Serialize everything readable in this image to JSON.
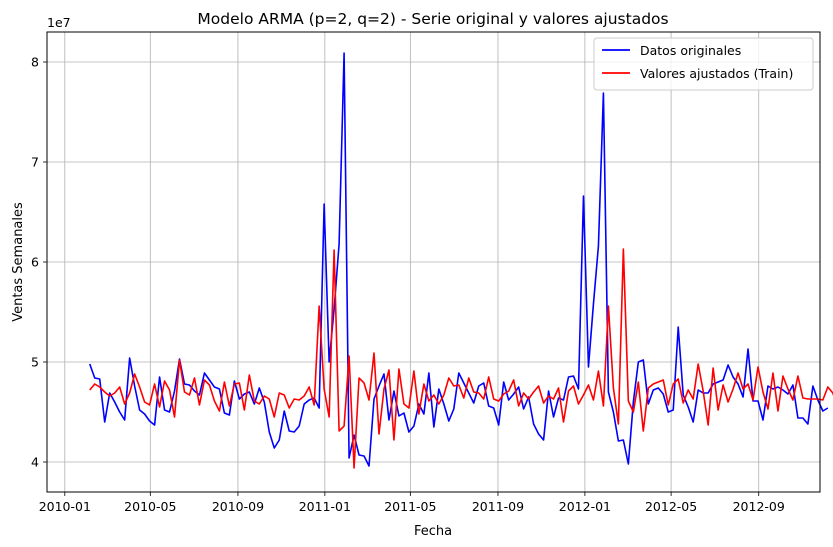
{
  "chart_data": {
    "type": "line",
    "title": "Modelo ARMA (p=2, q=2) - Serie original y valores ajustados",
    "xlabel": "Fecha",
    "ylabel": "Ventas Semanales",
    "y_offset_label": "1e7",
    "xlim": [
      "2009-12-07",
      "2012-11-26"
    ],
    "ylim": [
      37000000,
      83000000
    ],
    "grid": true,
    "legend_position": "upper right",
    "x_ticks": [
      {
        "date": "2010-01-01",
        "label": "2010-01"
      },
      {
        "date": "2010-05-01",
        "label": "2010-05"
      },
      {
        "date": "2010-09-01",
        "label": "2010-09"
      },
      {
        "date": "2011-01-01",
        "label": "2011-01"
      },
      {
        "date": "2011-05-01",
        "label": "2011-05"
      },
      {
        "date": "2011-09-01",
        "label": "2011-09"
      },
      {
        "date": "2012-01-01",
        "label": "2012-01"
      },
      {
        "date": "2012-05-01",
        "label": "2012-05"
      },
      {
        "date": "2012-09-01",
        "label": "2012-09"
      }
    ],
    "y_ticks": [
      {
        "value": 40000000,
        "label": "4"
      },
      {
        "value": 50000000,
        "label": "5"
      },
      {
        "value": 60000000,
        "label": "6"
      },
      {
        "value": 70000000,
        "label": "7"
      },
      {
        "value": 80000000,
        "label": "8"
      }
    ],
    "x_start": "2010-02-05",
    "x_step_days": 7,
    "series": [
      {
        "name": "Datos originales",
        "color": "#0000ff",
        "values": [
          49.8,
          48.4,
          48.3,
          44.0,
          46.9,
          46.0,
          45.0,
          44.2,
          50.4,
          47.6,
          45.2,
          44.8,
          44.1,
          43.7,
          48.5,
          45.2,
          45.0,
          47.1,
          50.3,
          47.8,
          47.7,
          47.1,
          46.7,
          48.9,
          48.2,
          47.5,
          47.3,
          44.9,
          44.7,
          48.1,
          46.3,
          46.8,
          47.0,
          45.8,
          47.4,
          46.0,
          43.0,
          41.4,
          42.2,
          45.1,
          43.1,
          43.0,
          43.6,
          45.8,
          46.2,
          46.4,
          45.4,
          65.8,
          50.0,
          55.3,
          61.8,
          80.9,
          40.4,
          42.7,
          40.7,
          40.6,
          39.6,
          46.3,
          47.6,
          48.8,
          44.2,
          47.1,
          44.6,
          44.9,
          43.0,
          43.6,
          45.8,
          44.8,
          48.9,
          43.5,
          47.3,
          45.8,
          44.1,
          45.3,
          48.9,
          47.9,
          46.9,
          45.9,
          47.6,
          47.9,
          45.6,
          45.4,
          43.7,
          48.0,
          46.2,
          46.8,
          47.5,
          45.3,
          46.5,
          43.8,
          42.8,
          42.2,
          47.1,
          44.5,
          46.4,
          46.2,
          48.5,
          48.6,
          47.3,
          66.6,
          49.5,
          55.8,
          61.6,
          76.9,
          47.0,
          45.0,
          42.1,
          42.2,
          39.8,
          46.0,
          50.0,
          50.2,
          45.8,
          47.2,
          47.4,
          46.8,
          45.0,
          45.2,
          53.5,
          46.7,
          45.5,
          44.0,
          47.2,
          46.9,
          46.9,
          47.8,
          48.0,
          48.2,
          49.7,
          48.5,
          47.8,
          46.5,
          51.3,
          46.1,
          46.1,
          44.2,
          47.6,
          47.3,
          47.5,
          47.2,
          46.8,
          47.7,
          44.4,
          44.4,
          43.8,
          47.6,
          46.2,
          45.1,
          45.4
        ]
      },
      {
        "name": "Valores ajustados (Train)",
        "color": "#ff0000",
        "values": [
          47.2,
          47.8,
          47.5,
          47.0,
          46.6,
          46.9,
          47.5,
          45.8,
          46.9,
          48.8,
          47.5,
          46.0,
          45.7,
          47.8,
          45.5,
          48.1,
          47.2,
          44.5,
          50.2,
          47.0,
          46.7,
          48.4,
          45.7,
          48.2,
          47.7,
          46.1,
          45.1,
          48.0,
          45.6,
          47.8,
          47.9,
          45.2,
          48.7,
          46.1,
          45.8,
          46.6,
          46.3,
          44.5,
          46.9,
          46.7,
          45.4,
          46.3,
          46.2,
          46.6,
          47.5,
          45.7,
          55.6,
          47.3,
          44.5,
          61.2,
          43.1,
          43.6,
          50.6,
          39.4,
          48.4,
          47.9,
          46.2,
          50.9,
          42.8,
          47.3,
          49.2,
          42.2,
          49.3,
          45.8,
          45.4,
          49.1,
          44.8,
          47.8,
          46.1,
          46.7,
          45.8,
          46.7,
          48.4,
          47.6,
          47.7,
          46.4,
          48.4,
          47.0,
          46.9,
          46.3,
          48.5,
          46.3,
          46.1,
          46.8,
          47.1,
          48.2,
          45.6,
          46.9,
          46.3,
          47.0,
          47.6,
          45.9,
          46.6,
          46.3,
          47.4,
          44.0,
          47.1,
          47.6,
          45.8,
          46.7,
          47.7,
          46.2,
          49.1,
          45.6,
          55.6,
          47.4,
          43.8,
          61.3,
          46.1,
          45.0,
          48.0,
          43.1,
          47.4,
          47.8,
          48.0,
          48.2,
          45.7,
          47.8,
          48.3,
          45.9,
          47.2,
          46.3,
          49.8,
          47.1,
          43.7,
          49.4,
          45.2,
          47.7,
          46.0,
          47.3,
          48.9,
          47.3,
          47.8,
          46.2,
          49.5,
          47.0,
          45.3,
          48.9,
          45.1,
          48.6,
          47.3,
          46.2,
          48.6,
          46.4,
          46.3,
          46.3,
          46.3,
          46.2,
          47.5,
          46.9,
          45.4
        ]
      }
    ]
  }
}
